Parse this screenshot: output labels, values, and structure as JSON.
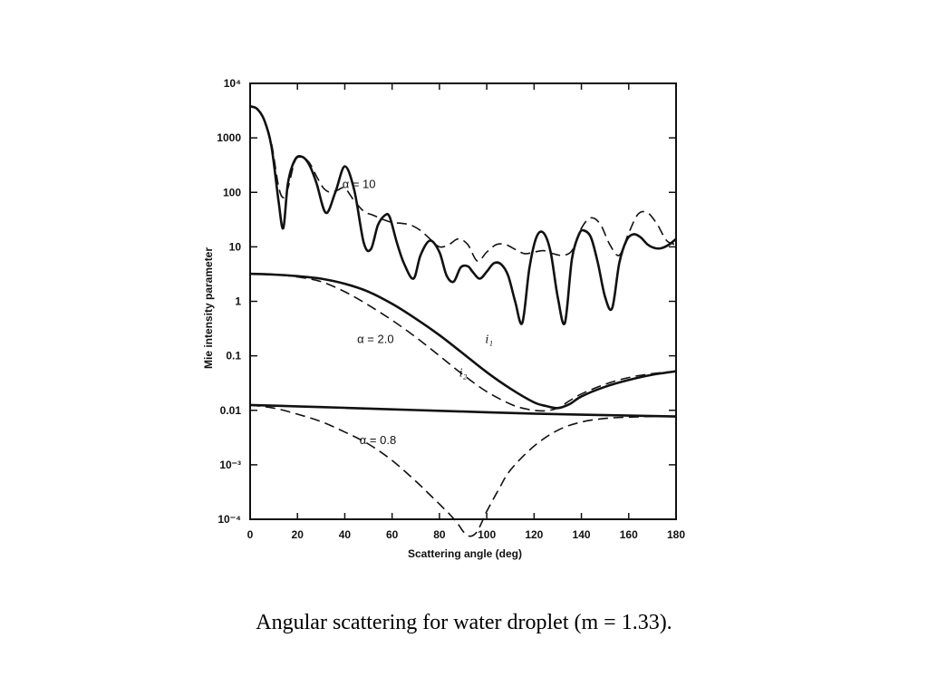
{
  "caption": "Angular scattering for water droplet (m = 1.33).",
  "chart_data": {
    "type": "line",
    "xlabel": "Scattering angle (deg)",
    "ylabel": "Mie intensity parameter",
    "xlim": [
      0,
      180
    ],
    "ylim": [
      0.0001,
      10000
    ],
    "yscale": "log",
    "grid": false,
    "x_ticks": [
      0,
      20,
      40,
      60,
      80,
      100,
      120,
      140,
      160,
      180
    ],
    "y_ticks": [
      {
        "value": 10000,
        "label": "10⁴"
      },
      {
        "value": 1000,
        "label": "1000"
      },
      {
        "value": 100,
        "label": "100"
      },
      {
        "value": 10,
        "label": "10"
      },
      {
        "value": 1,
        "label": "1"
      },
      {
        "value": 0.1,
        "label": "0.1"
      },
      {
        "value": 0.01,
        "label": "0.01"
      },
      {
        "value": 0.001,
        "label": "10⁻³"
      },
      {
        "value": 0.0001,
        "label": "10⁻⁴"
      }
    ],
    "annotations": [
      {
        "text": "α = 10",
        "x": 46,
        "y": 140
      },
      {
        "text": "α = 2.0",
        "x": 53,
        "y": 0.2
      },
      {
        "text": "α = 0.8",
        "x": 54,
        "y": 0.0028
      },
      {
        "text": "i₁",
        "x": 101,
        "y": 0.2
      },
      {
        "text": "i₂",
        "x": 90,
        "y": 0.049
      }
    ],
    "series": [
      {
        "style": "solid",
        "x": [
          0,
          3,
          6,
          9,
          12,
          14,
          16,
          19,
          22,
          25,
          28,
          32,
          36,
          40,
          44,
          48,
          51,
          54,
          57,
          59,
          62,
          65,
          69,
          72,
          76,
          80,
          83,
          86,
          89,
          92,
          94,
          97,
          100,
          103,
          106,
          109,
          112,
          115,
          118,
          121,
          124,
          127,
          130,
          133,
          136,
          139,
          141,
          144,
          147,
          150,
          153,
          156,
          159,
          162,
          165,
          168,
          171,
          174,
          177,
          180
        ],
        "y": [
          3800,
          3400,
          2100,
          700,
          70,
          22,
          150,
          400,
          450,
          320,
          150,
          42,
          100,
          300,
          110,
          12,
          9,
          25,
          38,
          35,
          12,
          5,
          2.6,
          7,
          13,
          8,
          3,
          2.3,
          4.2,
          4.4,
          3.5,
          2.6,
          3.5,
          5,
          4.8,
          3,
          1,
          0.4,
          4,
          15,
          18,
          8,
          1.2,
          0.4,
          6,
          17,
          20,
          15,
          5,
          1.2,
          0.75,
          5,
          13,
          17,
          15,
          11,
          9.5,
          9.5,
          11,
          14
        ]
      },
      {
        "style": "dashed",
        "x": [
          0,
          3,
          6,
          9,
          12,
          14,
          16,
          19,
          22,
          25,
          28,
          31,
          34,
          37,
          40,
          44,
          48,
          52,
          56,
          60,
          64,
          68,
          72,
          76,
          80,
          84,
          88,
          92,
          96,
          100,
          104,
          108,
          112,
          116,
          120,
          124,
          128,
          132,
          136,
          140,
          144,
          148,
          152,
          156,
          160,
          164,
          168,
          172,
          176,
          180
        ],
        "y": [
          3800,
          3400,
          2100,
          800,
          130,
          80,
          120,
          380,
          440,
          350,
          200,
          120,
          100,
          110,
          120,
          70,
          45,
          38,
          32,
          28,
          27,
          25,
          20,
          14,
          10,
          11,
          14,
          11,
          5.5,
          8,
          11,
          11,
          9,
          7.5,
          8,
          8.5,
          7.5,
          7,
          8.5,
          22,
          34,
          26,
          11,
          7,
          18,
          40,
          42,
          26,
          13,
          11
        ]
      },
      {
        "style": "solid",
        "x": [
          0,
          10,
          20,
          30,
          40,
          50,
          60,
          70,
          80,
          90,
          100,
          110,
          120,
          125,
          130,
          135,
          140,
          150,
          160,
          170,
          180
        ],
        "y": [
          3.2,
          3.1,
          2.9,
          2.6,
          2.1,
          1.5,
          0.9,
          0.48,
          0.24,
          0.11,
          0.05,
          0.025,
          0.014,
          0.012,
          0.011,
          0.013,
          0.018,
          0.027,
          0.036,
          0.045,
          0.052
        ]
      },
      {
        "style": "dashed",
        "x": [
          0,
          10,
          20,
          30,
          40,
          50,
          60,
          70,
          80,
          90,
          100,
          110,
          115,
          120,
          125,
          130,
          135,
          140,
          150,
          160,
          170,
          180
        ],
        "y": [
          3.2,
          3.1,
          2.8,
          2.3,
          1.5,
          0.85,
          0.45,
          0.22,
          0.1,
          0.045,
          0.022,
          0.013,
          0.011,
          0.01,
          0.0098,
          0.011,
          0.015,
          0.02,
          0.03,
          0.04,
          0.047,
          0.052
        ]
      },
      {
        "style": "solid",
        "x": [
          0,
          20,
          40,
          60,
          80,
          100,
          120,
          140,
          160,
          180
        ],
        "y": [
          0.0125,
          0.0118,
          0.0111,
          0.0104,
          0.0098,
          0.0092,
          0.0087,
          0.0083,
          0.008,
          0.0077
        ]
      },
      {
        "style": "dashed",
        "x": [
          0,
          10,
          20,
          30,
          40,
          50,
          60,
          70,
          75,
          80,
          85,
          88,
          90,
          92,
          94,
          96,
          98,
          100,
          105,
          110,
          120,
          130,
          140,
          150,
          160,
          170,
          180
        ],
        "y": [
          0.0125,
          0.011,
          0.0085,
          0.0062,
          0.004,
          0.0024,
          0.0012,
          0.0005,
          0.00031,
          0.00019,
          0.000115,
          8e-05,
          6e-05,
          4e-05,
          4e-05,
          6e-05,
          9e-05,
          0.00014,
          0.00035,
          0.0008,
          0.0022,
          0.0043,
          0.0061,
          0.0071,
          0.0075,
          0.0077,
          0.0077
        ]
      }
    ]
  }
}
